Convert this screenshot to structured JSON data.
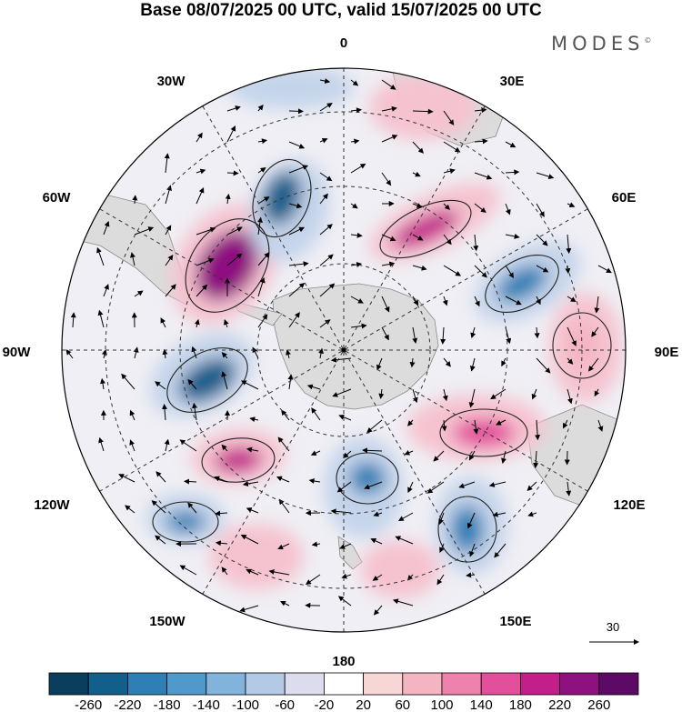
{
  "title": "Base 08/07/2025 00 UTC, valid 15/07/2025 00 UTC",
  "brand": "MODES",
  "brand_mark": "©",
  "longitude_labels": {
    "top": "0",
    "top_right": "30E",
    "upper_right": "60E",
    "right": "90E",
    "lower_right": "120E",
    "bottom_right": "150E",
    "bottom": "180",
    "bottom_left": "150W",
    "lower_left": "120W",
    "left": "90W",
    "upper_left": "60W",
    "top_left": "30W"
  },
  "vector_reference": {
    "value": "30"
  },
  "colorbar": {
    "ticks": [
      "-260",
      "-220",
      "-180",
      "-140",
      "-100",
      "-60",
      "-20",
      "20",
      "60",
      "100",
      "140",
      "180",
      "220",
      "260"
    ],
    "colors": [
      "#0b3d5c",
      "#135f8c",
      "#2d7fb5",
      "#4f9acb",
      "#82b3da",
      "#b3c9e6",
      "#dcdcef",
      "#ffffff",
      "#f8d6d6",
      "#f5b4c2",
      "#ef82ac",
      "#e2509c",
      "#c21f8a",
      "#8e1180",
      "#5c0a66"
    ]
  },
  "anomaly_centers": [
    {
      "id": "pos-60w",
      "sign": "pos",
      "level": 260,
      "color": "#8e1180"
    },
    {
      "id": "neg-40w",
      "sign": "neg",
      "level": -220,
      "color": "#135f8c"
    },
    {
      "id": "neg-90w",
      "sign": "neg",
      "level": -220,
      "color": "#135f8c"
    },
    {
      "id": "pos-120w",
      "sign": "pos",
      "level": 220,
      "color": "#c21f8a"
    },
    {
      "id": "neg-125w",
      "sign": "neg",
      "level": -180,
      "color": "#2d7fb5"
    },
    {
      "id": "pos-50e",
      "sign": "pos",
      "level": 220,
      "color": "#c21f8a"
    },
    {
      "id": "neg-70e",
      "sign": "neg",
      "level": -180,
      "color": "#2d7fb5"
    },
    {
      "id": "pos-110e",
      "sign": "pos",
      "level": 180,
      "color": "#e2509c"
    },
    {
      "id": "neg-150e",
      "sign": "neg",
      "level": -180,
      "color": "#2d7fb5"
    },
    {
      "id": "neg-170w",
      "sign": "neg",
      "level": -180,
      "color": "#2d7fb5"
    },
    {
      "id": "pos-90e",
      "sign": "pos",
      "level": 100,
      "color": "#f5b4c2"
    },
    {
      "id": "pos-160e",
      "sign": "pos",
      "level": 100,
      "color": "#f5b4c2"
    },
    {
      "id": "pos-150w",
      "sign": "pos",
      "level": 100,
      "color": "#f5b4c2"
    },
    {
      "id": "pos-20e",
      "sign": "pos",
      "level": 60,
      "color": "#f8d6d6"
    },
    {
      "id": "neg-10w",
      "sign": "neg",
      "level": -60,
      "color": "#b3c9e6"
    }
  ]
}
